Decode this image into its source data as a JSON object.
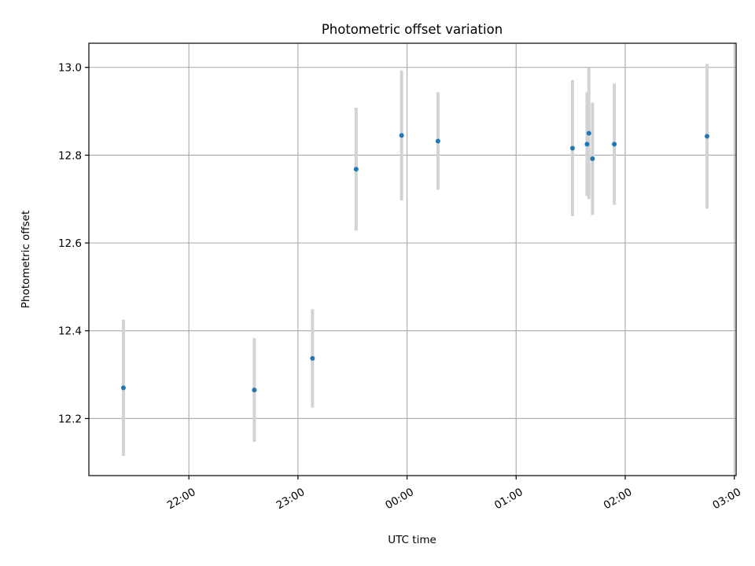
{
  "chart_data": {
    "type": "scatter",
    "title": "Photometric offset variation",
    "xlabel": "UTC time",
    "ylabel": "Photometric offset",
    "x_tick_labels": [
      "22:00",
      "23:00",
      "00:00",
      "01:00",
      "02:00",
      "03:00"
    ],
    "x_ticks": [
      "22:00",
      "23:00",
      "24:00",
      "25:00",
      "26:00",
      "27:00"
    ],
    "y_tick_labels": [
      "12.2",
      "12.4",
      "12.6",
      "12.8",
      "13.0"
    ],
    "y_ticks": [
      12.2,
      12.4,
      12.6,
      12.8,
      13.0
    ],
    "xlim": [
      "21:05",
      "27:01"
    ],
    "ylim": [
      12.07,
      13.055
    ],
    "grid": true,
    "series": [
      {
        "marker_color": "#1f77b4",
        "error_color": "#d3d3d3",
        "points": [
          {
            "time": "21:24",
            "y": 12.27,
            "yerr": 0.155
          },
          {
            "time": "22:36",
            "y": 12.265,
            "yerr": 0.118
          },
          {
            "time": "23:08",
            "y": 12.337,
            "yerr": 0.112
          },
          {
            "time": "23:32",
            "y": 12.768,
            "yerr": 0.14
          },
          {
            "time": "23:57",
            "y": 12.845,
            "yerr": 0.148
          },
          {
            "time": "24:17",
            "y": 12.832,
            "yerr": 0.111
          },
          {
            "time": "25:31",
            "y": 12.816,
            "yerr": 0.155
          },
          {
            "time": "25:39",
            "y": 12.825,
            "yerr": 0.118
          },
          {
            "time": "25:40",
            "y": 12.85,
            "yerr": 0.15
          },
          {
            "time": "25:42",
            "y": 12.792,
            "yerr": 0.128
          },
          {
            "time": "25:54",
            "y": 12.825,
            "yerr": 0.138
          },
          {
            "time": "26:45",
            "y": 12.843,
            "yerr": 0.165
          }
        ]
      }
    ]
  }
}
